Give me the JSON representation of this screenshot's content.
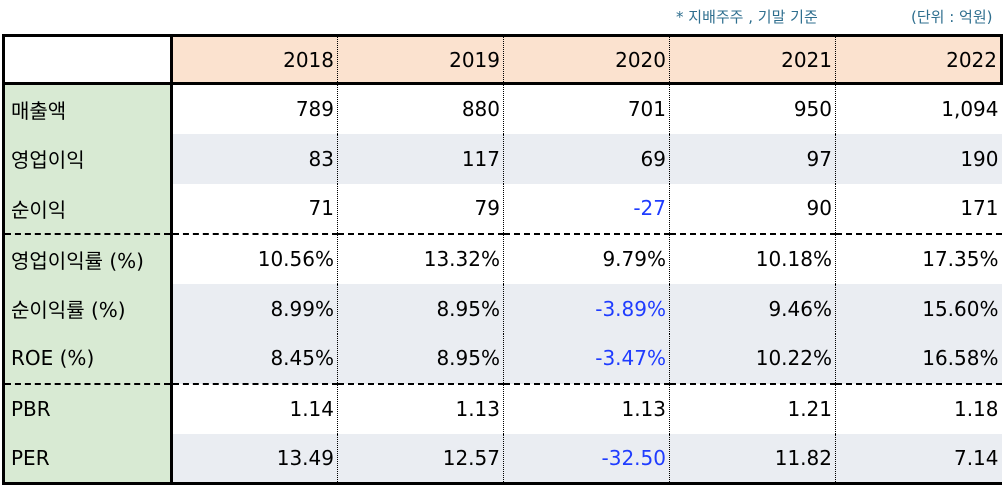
{
  "notes": {
    "basis": "* 지배주주 , 기말 기준",
    "unit": "(단위 : 억원)"
  },
  "years": [
    "2018",
    "2019",
    "2020",
    "2021",
    "2022"
  ],
  "rows": [
    {
      "label": "매출액",
      "values": [
        "789",
        "880",
        "701",
        "950",
        "1,094"
      ]
    },
    {
      "label": "영업이익",
      "values": [
        "83",
        "117",
        "69",
        "97",
        "190"
      ]
    },
    {
      "label": "순이익",
      "values": [
        "71",
        "79",
        "-27",
        "90",
        "171"
      ]
    },
    {
      "label": "영업이익률 (%)",
      "values": [
        "10.56%",
        "13.32%",
        "9.79%",
        "10.18%",
        "17.35%"
      ]
    },
    {
      "label": "순이익률 (%)",
      "values": [
        "8.99%",
        "8.95%",
        "-3.89%",
        "9.46%",
        "15.60%"
      ]
    },
    {
      "label": "ROE (%)",
      "values": [
        "8.45%",
        "8.95%",
        "-3.47%",
        "10.22%",
        "16.58%"
      ]
    },
    {
      "label": "PBR",
      "values": [
        "1.14",
        "1.13",
        "1.13",
        "1.21",
        "1.18"
      ]
    },
    {
      "label": "PER",
      "values": [
        "13.49",
        "12.57",
        "-32.50",
        "11.82",
        "7.14"
      ]
    }
  ],
  "colors": {
    "header_bg": "#fbe2cf",
    "label_bg": "#d8ead3",
    "alt_row_bg": "#eaedf2",
    "negative": "#1f3cff",
    "note": "#2f6f8f"
  }
}
